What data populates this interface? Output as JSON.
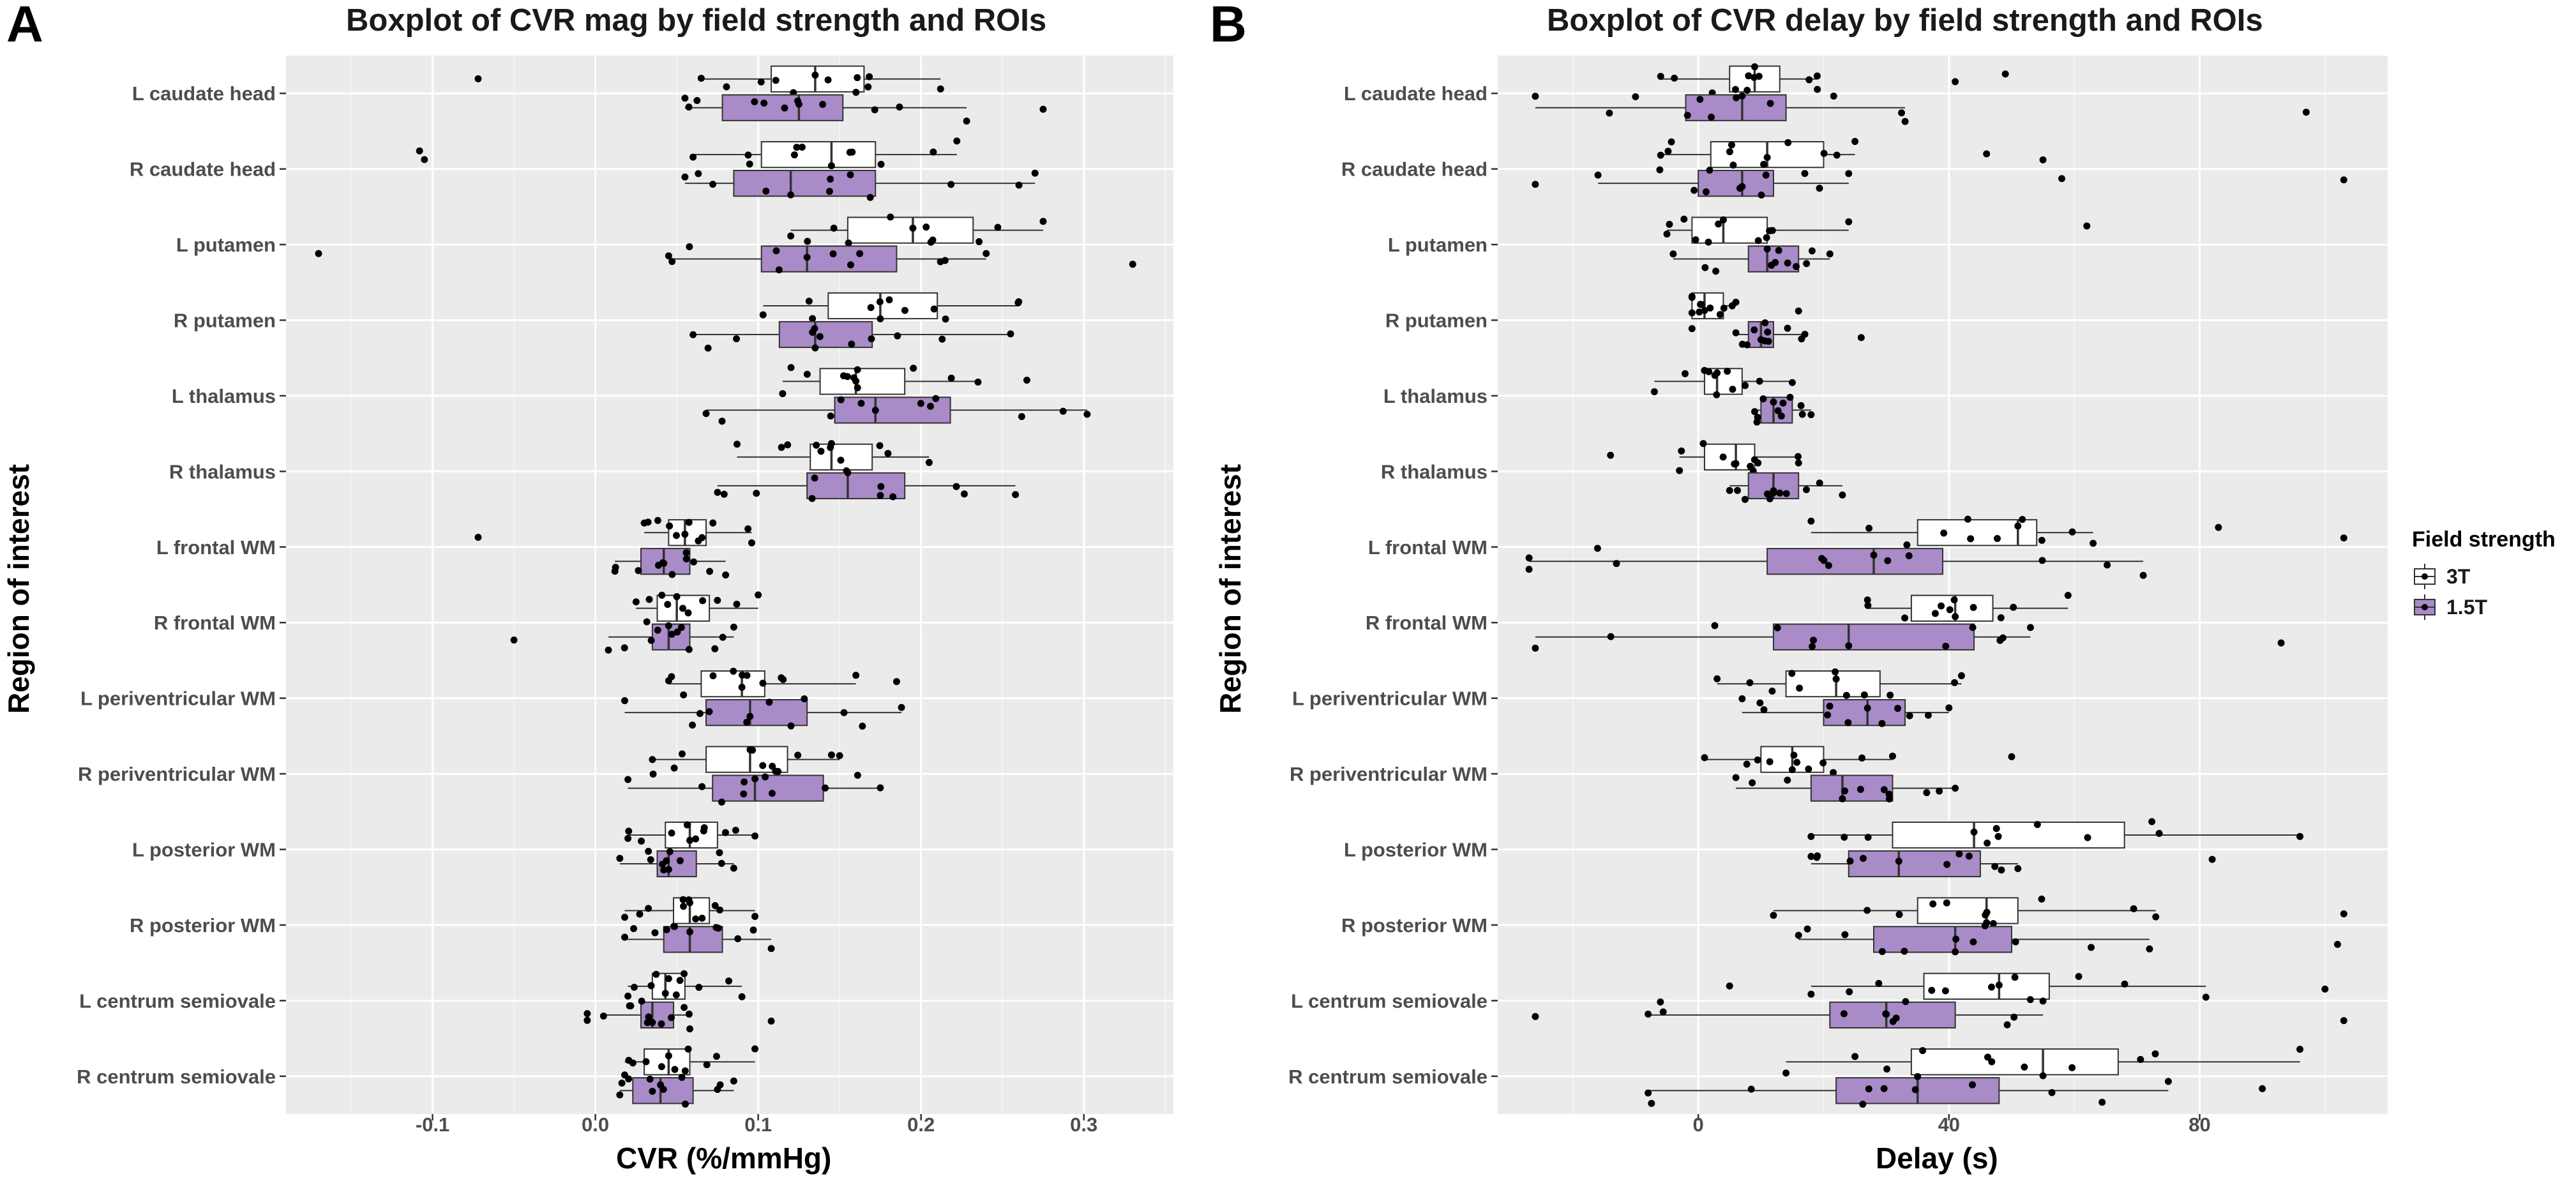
{
  "panels": [
    {
      "letter": "A",
      "title": "Boxplot of CVR mag by field strength and ROIs",
      "xlabel": "CVR (%/mmHg)",
      "ylabel": "Region of interest"
    },
    {
      "letter": "B",
      "title": "Boxplot of CVR delay by field strength and ROIs",
      "xlabel": "Delay (s)",
      "ylabel": "Region of interest"
    }
  ],
  "legend": {
    "title": "Field strength",
    "items": [
      {
        "label": "3T",
        "color": "#ffffff"
      },
      {
        "label": "1.5T",
        "color": "#a98bc8"
      }
    ]
  },
  "chart_data": [
    {
      "type": "boxplot",
      "orientation": "horizontal",
      "title": "Boxplot of CVR mag by field strength and ROIs",
      "xlabel": "CVR (%/mmHg)",
      "ylabel": "Region of interest",
      "xlim": [
        -0.19,
        0.355
      ],
      "xticks": [
        -0.1,
        0.0,
        0.1,
        0.2,
        0.3
      ],
      "xtick_labels": [
        "-0.1",
        "0.0",
        "0.1",
        "0.2",
        "0.3"
      ],
      "categories": [
        "L caudate head",
        "R caudate head",
        "L putamen",
        "R putamen",
        "L thalamus",
        "R thalamus",
        "L frontal WM",
        "R frontal WM",
        "L periventricular WM",
        "R periventricular WM",
        "L posterior WM",
        "R posterior WM",
        "L centrum semiovale",
        "R centrum semiovale"
      ],
      "series": [
        {
          "name": "3T",
          "color": "#ffffff",
          "boxes": [
            {
              "whislo": 0.065,
              "q1": 0.108,
              "med": 0.135,
              "q3": 0.165,
              "whishi": 0.212,
              "outliers": [
                -0.072
              ]
            },
            {
              "whislo": 0.06,
              "q1": 0.102,
              "med": 0.145,
              "q3": 0.172,
              "whishi": 0.222,
              "outliers": [
                -0.108,
                -0.105
              ]
            },
            {
              "whislo": 0.12,
              "q1": 0.155,
              "med": 0.195,
              "q3": 0.232,
              "whishi": 0.275,
              "outliers": []
            },
            {
              "whislo": 0.103,
              "q1": 0.143,
              "med": 0.175,
              "q3": 0.21,
              "whishi": 0.26,
              "outliers": []
            },
            {
              "whislo": 0.115,
              "q1": 0.138,
              "med": 0.16,
              "q3": 0.19,
              "whishi": 0.235,
              "outliers": [
                0.265
              ]
            },
            {
              "whislo": 0.087,
              "q1": 0.132,
              "med": 0.145,
              "q3": 0.17,
              "whishi": 0.205,
              "outliers": []
            },
            {
              "whislo": 0.03,
              "q1": 0.045,
              "med": 0.055,
              "q3": 0.068,
              "whishi": 0.096,
              "outliers": [
                -0.072
              ]
            },
            {
              "whislo": 0.025,
              "q1": 0.038,
              "med": 0.05,
              "q3": 0.07,
              "whishi": 0.1,
              "outliers": []
            },
            {
              "whislo": 0.045,
              "q1": 0.065,
              "med": 0.09,
              "q3": 0.104,
              "whishi": 0.16,
              "outliers": [
                0.185
              ]
            },
            {
              "whislo": 0.035,
              "q1": 0.068,
              "med": 0.095,
              "q3": 0.118,
              "whishi": 0.15,
              "outliers": []
            },
            {
              "whislo": 0.02,
              "q1": 0.043,
              "med": 0.058,
              "q3": 0.075,
              "whishi": 0.098,
              "outliers": []
            },
            {
              "whislo": 0.018,
              "q1": 0.048,
              "med": 0.058,
              "q3": 0.07,
              "whishi": 0.098,
              "outliers": []
            },
            {
              "whislo": 0.02,
              "q1": 0.035,
              "med": 0.043,
              "q3": 0.055,
              "whishi": 0.09,
              "outliers": []
            },
            {
              "whislo": 0.018,
              "q1": 0.03,
              "med": 0.045,
              "q3": 0.058,
              "whishi": 0.098,
              "outliers": []
            }
          ]
        },
        {
          "name": "1.5T",
          "color": "#a98bc8",
          "boxes": [
            {
              "whislo": 0.055,
              "q1": 0.078,
              "med": 0.125,
              "q3": 0.152,
              "whishi": 0.228,
              "outliers": [
                0.275
              ]
            },
            {
              "whislo": 0.055,
              "q1": 0.085,
              "med": 0.12,
              "q3": 0.172,
              "whishi": 0.27,
              "outliers": []
            },
            {
              "whislo": 0.045,
              "q1": 0.102,
              "med": 0.13,
              "q3": 0.185,
              "whishi": 0.24,
              "outliers": [
                -0.17,
                0.33
              ]
            },
            {
              "whislo": 0.06,
              "q1": 0.113,
              "med": 0.135,
              "q3": 0.17,
              "whishi": 0.255,
              "outliers": []
            },
            {
              "whislo": 0.068,
              "q1": 0.147,
              "med": 0.172,
              "q3": 0.218,
              "whishi": 0.302,
              "outliers": []
            },
            {
              "whislo": 0.075,
              "q1": 0.13,
              "med": 0.155,
              "q3": 0.19,
              "whishi": 0.258,
              "outliers": []
            },
            {
              "whislo": 0.012,
              "q1": 0.028,
              "med": 0.042,
              "q3": 0.058,
              "whishi": 0.08,
              "outliers": []
            },
            {
              "whislo": 0.008,
              "q1": 0.035,
              "med": 0.045,
              "q3": 0.058,
              "whishi": 0.085,
              "outliers": [
                -0.05
              ]
            },
            {
              "whislo": 0.018,
              "q1": 0.068,
              "med": 0.095,
              "q3": 0.13,
              "whishi": 0.188,
              "outliers": []
            },
            {
              "whislo": 0.02,
              "q1": 0.072,
              "med": 0.098,
              "q3": 0.14,
              "whishi": 0.175,
              "outliers": []
            },
            {
              "whislo": 0.015,
              "q1": 0.038,
              "med": 0.045,
              "q3": 0.062,
              "whishi": 0.085,
              "outliers": []
            },
            {
              "whislo": 0.018,
              "q1": 0.042,
              "med": 0.058,
              "q3": 0.078,
              "whishi": 0.108,
              "outliers": []
            },
            {
              "whislo": 0.005,
              "q1": 0.028,
              "med": 0.035,
              "q3": 0.048,
              "whishi": 0.058,
              "outliers": [
                -0.005,
                -0.005,
                0.108
              ]
            },
            {
              "whislo": 0.015,
              "q1": 0.023,
              "med": 0.04,
              "q3": 0.06,
              "whishi": 0.085,
              "outliers": []
            }
          ]
        }
      ]
    },
    {
      "type": "boxplot",
      "orientation": "horizontal",
      "title": "Boxplot of CVR delay by field strength and ROIs",
      "xlabel": "Delay (s)",
      "ylabel": "Region of interest",
      "xlim": [
        -32,
        110
      ],
      "xticks": [
        0,
        40,
        80
      ],
      "xtick_labels": [
        "0",
        "40",
        "80"
      ],
      "categories": [
        "L caudate head",
        "R caudate head",
        "L putamen",
        "R putamen",
        "L thalamus",
        "R thalamus",
        "L frontal WM",
        "R frontal WM",
        "L periventricular WM",
        "R periventricular WM",
        "L posterior WM",
        "R posterior WM",
        "L centrum semiovale",
        "R centrum semiovale"
      ],
      "series": [
        {
          "name": "3T",
          "color": "#ffffff",
          "boxes": [
            {
              "whislo": -6,
              "q1": 5,
              "med": 9,
              "q3": 13,
              "whishi": 19,
              "outliers": [
                41,
                49
              ]
            },
            {
              "whislo": -6,
              "q1": 2,
              "med": 11,
              "q3": 20,
              "whishi": 25,
              "outliers": [
                46,
                55
              ]
            },
            {
              "whislo": -5,
              "q1": -1,
              "med": 4,
              "q3": 11,
              "whishi": 24,
              "outliers": [
                62
              ]
            },
            {
              "whislo": -1,
              "q1": -1,
              "med": 1,
              "q3": 4,
              "whishi": 6,
              "outliers": [
                16
              ]
            },
            {
              "whislo": -7,
              "q1": 1,
              "med": 3,
              "q3": 7,
              "whishi": 15,
              "outliers": []
            },
            {
              "whislo": -3,
              "q1": 1,
              "med": 6,
              "q3": 9,
              "whishi": 16,
              "outliers": [
                -14
              ]
            },
            {
              "whislo": 18,
              "q1": 35,
              "med": 51,
              "q3": 54,
              "whishi": 63,
              "outliers": [
                83,
                103
              ]
            },
            {
              "whislo": 27,
              "q1": 34,
              "med": 41,
              "q3": 47,
              "whishi": 59,
              "outliers": []
            },
            {
              "whislo": 3,
              "q1": 14,
              "med": 22,
              "q3": 29,
              "whishi": 42,
              "outliers": []
            },
            {
              "whislo": 1,
              "q1": 10,
              "med": 15,
              "q3": 20,
              "whishi": 31,
              "outliers": [
                50
              ]
            },
            {
              "whislo": 18,
              "q1": 31,
              "med": 44,
              "q3": 68,
              "whishi": 96,
              "outliers": []
            },
            {
              "whislo": 12,
              "q1": 35,
              "med": 46,
              "q3": 51,
              "whishi": 73,
              "outliers": [
                103
              ]
            },
            {
              "whislo": 18,
              "q1": 36,
              "med": 48,
              "q3": 56,
              "whishi": 81,
              "outliers": [
                5,
                100
              ]
            },
            {
              "whislo": 14,
              "q1": 34,
              "med": 55,
              "q3": 67,
              "whishi": 96,
              "outliers": []
            }
          ]
        },
        {
          "name": "1.5T",
          "color": "#a98bc8",
          "boxes": [
            {
              "whislo": -26,
              "q1": -2,
              "med": 7,
              "q3": 14,
              "whishi": 33,
              "outliers": [
                97
              ]
            },
            {
              "whislo": -16,
              "q1": 0,
              "med": 7,
              "q3": 12,
              "whishi": 24,
              "outliers": [
                -26,
                58,
                103
              ]
            },
            {
              "whislo": -4,
              "q1": 8,
              "med": 11,
              "q3": 16,
              "whishi": 21,
              "outliers": []
            },
            {
              "whislo": 6,
              "q1": 8,
              "med": 10,
              "q3": 12,
              "whishi": 17,
              "outliers": [
                -1,
                26
              ]
            },
            {
              "whislo": 9,
              "q1": 10,
              "med": 12,
              "q3": 15,
              "whishi": 18,
              "outliers": []
            },
            {
              "whislo": 5,
              "q1": 8,
              "med": 12,
              "q3": 16,
              "whishi": 23,
              "outliers": []
            },
            {
              "whislo": -27,
              "q1": 11,
              "med": 28,
              "q3": 39,
              "whishi": 71,
              "outliers": [
                -27
              ]
            },
            {
              "whislo": -26,
              "q1": 12,
              "med": 24,
              "q3": 44,
              "whishi": 53,
              "outliers": [
                93
              ]
            },
            {
              "whislo": 7,
              "q1": 20,
              "med": 27,
              "q3": 33,
              "whishi": 40,
              "outliers": []
            },
            {
              "whislo": 6,
              "q1": 18,
              "med": 23,
              "q3": 31,
              "whishi": 41,
              "outliers": []
            },
            {
              "whislo": 18,
              "q1": 24,
              "med": 32,
              "q3": 45,
              "whishi": 51,
              "outliers": [
                82
              ]
            },
            {
              "whislo": 16,
              "q1": 28,
              "med": 41,
              "q3": 50,
              "whishi": 72,
              "outliers": [
                102
              ]
            },
            {
              "whislo": -8,
              "q1": 21,
              "med": 30,
              "q3": 41,
              "whishi": 55,
              "outliers": [
                -26,
                103
              ]
            },
            {
              "whislo": -8,
              "q1": 22,
              "med": 35,
              "q3": 48,
              "whishi": 75,
              "outliers": [
                90
              ]
            }
          ]
        }
      ]
    }
  ]
}
